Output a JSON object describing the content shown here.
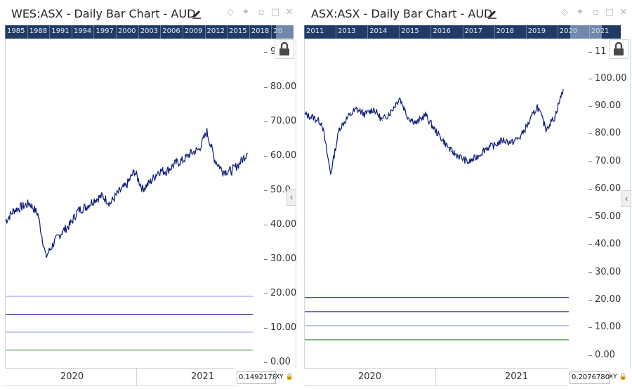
{
  "left_chart": {
    "title": "WES:ASX - Daily Bar Chart - AUD",
    "nav_years": [
      "1985",
      "1988",
      "1991",
      "1994",
      "1997",
      "2000",
      "2003",
      "2006",
      "2009",
      "2012",
      "2015",
      "2018",
      "20"
    ],
    "y_axis_labels": [
      "9",
      "80.00",
      "70.00",
      "60.00",
      "50.0",
      "40.00",
      "30.00",
      "20.00",
      "10.00",
      "0.00"
    ],
    "x_axis_labels": [
      "2020",
      "2021"
    ],
    "readout": "0.1492178",
    "xy_label": "XY"
  },
  "right_chart": {
    "title": "ASX:ASX - Daily Bar Chart - AUD",
    "nav_years": [
      "2011",
      "2013",
      "2014",
      "2015",
      "2016",
      "2017",
      "2018",
      "2019",
      "2020",
      "2021"
    ],
    "y_axis_labels": [
      "11",
      "100.00",
      "90.00",
      "80.00",
      "70.00",
      "60.00",
      "50.00",
      "40.00",
      "30.00",
      "20.00",
      "10.00",
      "0.00"
    ],
    "x_axis_labels": [
      "2020",
      "2021"
    ],
    "readout": "0.2076780",
    "xy_label": "XY"
  },
  "chart_data": [
    {
      "type": "line",
      "title": "WES:ASX - Daily Bar Chart - AUD",
      "x": [
        "2019-05",
        "2019-06",
        "2019-07",
        "2019-08",
        "2019-09",
        "2019-10",
        "2019-11",
        "2019-12",
        "2020-01",
        "2020-02",
        "2020-03",
        "2020-04",
        "2020-05",
        "2020-06",
        "2020-07",
        "2020-08",
        "2020-09",
        "2020-10",
        "2020-11",
        "2020-12",
        "2021-01",
        "2021-02",
        "2021-03",
        "2021-04",
        "2021-05",
        "2021-06",
        "2021-07",
        "2021-08",
        "2021-09",
        "2021-10",
        "2021-11"
      ],
      "series": [
        {
          "values": [
            41,
            44,
            45,
            46,
            43,
            31,
            35,
            38,
            40,
            44,
            45,
            47,
            48,
            46,
            49,
            51,
            55,
            50,
            52,
            55,
            55,
            57,
            58,
            60,
            61,
            66,
            58,
            55,
            55,
            57,
            60
          ]
        }
      ],
      "ylim": [
        0,
        92
      ],
      "horizontal_lines": [
        20,
        15,
        10,
        5
      ],
      "line_colors": [
        "#8c96f0",
        "#0a0a8f",
        "#8c96f0",
        "#1a7a1a"
      ]
    },
    {
      "type": "line",
      "title": "ASX:ASX - Daily Bar Chart - AUD",
      "x": [
        "2019-05",
        "2019-06",
        "2019-07",
        "2019-08",
        "2019-09",
        "2019-10",
        "2019-11",
        "2019-12",
        "2020-01",
        "2020-02",
        "2020-03",
        "2020-04",
        "2020-05",
        "2020-06",
        "2020-07",
        "2020-08",
        "2020-09",
        "2020-10",
        "2020-11",
        "2020-12",
        "2021-01",
        "2021-02",
        "2021-03",
        "2021-04",
        "2021-05",
        "2021-06",
        "2021-07",
        "2021-08",
        "2021-09",
        "2021-10",
        "2021-11"
      ],
      "series": [
        {
          "values": [
            85,
            84,
            82,
            64,
            80,
            84,
            87,
            85,
            87,
            83,
            86,
            91,
            84,
            82,
            85,
            80,
            76,
            72,
            70,
            68,
            70,
            73,
            74,
            76,
            75,
            77,
            82,
            88,
            80,
            84,
            94
          ]
        }
      ],
      "ylim": [
        -5,
        112
      ],
      "horizontal_lines": [
        20,
        15,
        10,
        5
      ],
      "line_colors": [
        "#0a0a8f",
        "#0a0a8f",
        "#8c96f0",
        "#1a7a1a"
      ]
    }
  ]
}
